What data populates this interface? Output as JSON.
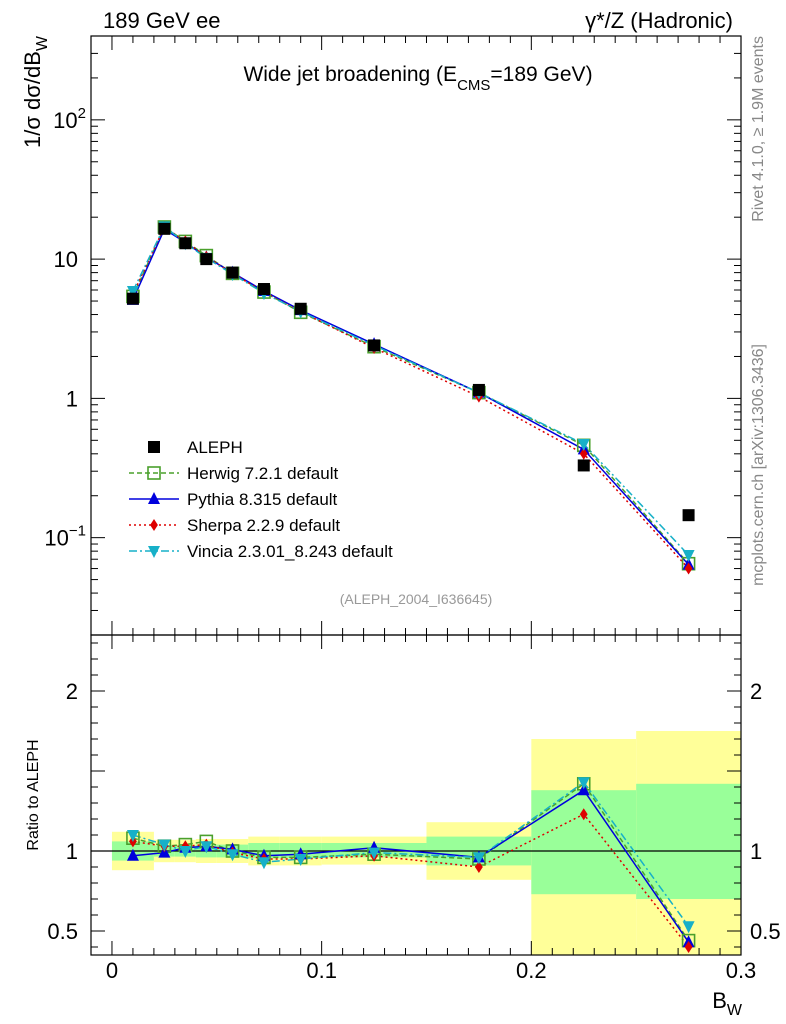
{
  "header": {
    "left": "189 GeV ee",
    "right": "γ*/Z (Hadronic)"
  },
  "side_labels": {
    "rivet": "Rivet 4.1.0, ≥ 1.9M events",
    "mcplots": "mcplots.cern.ch [arXiv:1306.3436]"
  },
  "chart_data": [
    {
      "type": "line",
      "panel": "main",
      "title": "Wide jet broadening (E_CMS=189 GeV)",
      "title_parts": {
        "pre": "Wide jet broadening (E",
        "sub": "CMS",
        "post": "=189 GeV)"
      },
      "ylabel": "1/σ dσ/dB_W",
      "ylabel_parts": {
        "pre": "1/σ  dσ/dB",
        "sub": "W"
      },
      "yscale": "log",
      "ylim": [
        0.02,
        400
      ],
      "xlim": [
        -0.01,
        0.3
      ],
      "yticks": [
        {
          "value": 0.1,
          "label": "10",
          "sup": "−1"
        },
        {
          "value": 1,
          "label": "1",
          "sup": ""
        },
        {
          "value": 10,
          "label": "10",
          "sup": ""
        },
        {
          "value": 100,
          "label": "10",
          "sup": "2"
        }
      ],
      "watermark": "(ALEPH_2004_I636645)",
      "legend_position": "lower-left",
      "data": {
        "name": "ALEPH",
        "x": [
          0.01,
          0.025,
          0.035,
          0.045,
          0.0575,
          0.0725,
          0.09,
          0.125,
          0.175,
          0.225,
          0.275
        ],
        "y": [
          5.2,
          16.5,
          13.0,
          10.0,
          8.0,
          6.1,
          4.4,
          2.4,
          1.15,
          0.33,
          0.145
        ]
      },
      "series": [
        {
          "name": "Herwig 7.2.1 default",
          "color": "#4aa02c",
          "dash": "5,3",
          "marker": "open-square",
          "x": [
            0.01,
            0.025,
            0.035,
            0.045,
            0.0575,
            0.0725,
            0.09,
            0.125,
            0.175,
            0.225,
            0.275
          ],
          "y": [
            5.4,
            17.0,
            13.4,
            10.6,
            7.9,
            5.8,
            4.15,
            2.35,
            1.1,
            0.46,
            0.065
          ]
        },
        {
          "name": "Pythia 8.315 default",
          "color": "#0000dd",
          "dash": "",
          "marker": "triangle-up",
          "x": [
            0.01,
            0.025,
            0.035,
            0.045,
            0.0575,
            0.0725,
            0.09,
            0.125,
            0.175,
            0.225,
            0.275
          ],
          "y": [
            5.1,
            16.4,
            13.2,
            10.3,
            8.0,
            5.9,
            4.3,
            2.45,
            1.1,
            0.43,
            0.064
          ]
        },
        {
          "name": "Sherpa 2.2.9 default",
          "color": "#dd0000",
          "dash": "2,3",
          "marker": "diamond",
          "x": [
            0.01,
            0.025,
            0.035,
            0.045,
            0.0575,
            0.0725,
            0.09,
            0.125,
            0.175,
            0.225,
            0.275
          ],
          "y": [
            5.6,
            17.0,
            13.4,
            10.4,
            7.9,
            5.8,
            4.2,
            2.3,
            1.03,
            0.4,
            0.06
          ]
        },
        {
          "name": "Vincia 2.3.01_8.243 default",
          "color": "#17b0c8",
          "dash": "8,3,2,3",
          "marker": "triangle-down",
          "x": [
            0.01,
            0.025,
            0.035,
            0.045,
            0.0575,
            0.0725,
            0.09,
            0.125,
            0.175,
            0.225,
            0.275
          ],
          "y": [
            5.9,
            17.2,
            13.0,
            10.2,
            7.8,
            5.7,
            4.2,
            2.4,
            1.1,
            0.47,
            0.075
          ]
        }
      ]
    },
    {
      "type": "line",
      "panel": "ratio",
      "ylabel": "Ratio to ALEPH",
      "xlabel": "B_W",
      "xlabel_parts": {
        "pre": "B",
        "sub": "W"
      },
      "ylim": [
        0.35,
        2.35
      ],
      "xlim": [
        -0.01,
        0.3
      ],
      "xticks": [
        0,
        0.1,
        0.2,
        0.3
      ],
      "xtick_labels": [
        "0",
        "0.1",
        "0.2",
        "0.3"
      ],
      "yticks": [
        0.5,
        1,
        2
      ],
      "ytick_labels": [
        "0.5",
        "1",
        "2"
      ],
      "bands": [
        {
          "x0": 0.0,
          "x1": 0.02,
          "inner": [
            0.94,
            1.06
          ],
          "outer": [
            0.88,
            1.12
          ]
        },
        {
          "x0": 0.02,
          "x1": 0.03,
          "inner": [
            0.965,
            1.035
          ],
          "outer": [
            0.93,
            1.07
          ]
        },
        {
          "x0": 0.03,
          "x1": 0.04,
          "inner": [
            0.965,
            1.035
          ],
          "outer": [
            0.93,
            1.07
          ]
        },
        {
          "x0": 0.04,
          "x1": 0.05,
          "inner": [
            0.96,
            1.04
          ],
          "outer": [
            0.925,
            1.075
          ]
        },
        {
          "x0": 0.05,
          "x1": 0.065,
          "inner": [
            0.96,
            1.04
          ],
          "outer": [
            0.925,
            1.075
          ]
        },
        {
          "x0": 0.065,
          "x1": 0.08,
          "inner": [
            0.955,
            1.05
          ],
          "outer": [
            0.91,
            1.09
          ]
        },
        {
          "x0": 0.08,
          "x1": 0.1,
          "inner": [
            0.955,
            1.05
          ],
          "outer": [
            0.91,
            1.09
          ]
        },
        {
          "x0": 0.1,
          "x1": 0.15,
          "inner": [
            0.96,
            1.05
          ],
          "outer": [
            0.915,
            1.09
          ]
        },
        {
          "x0": 0.15,
          "x1": 0.2,
          "inner": [
            0.91,
            1.09
          ],
          "outer": [
            0.82,
            1.18
          ]
        },
        {
          "x0": 0.2,
          "x1": 0.25,
          "inner": [
            0.73,
            1.38
          ],
          "outer": [
            0.35,
            1.7
          ]
        },
        {
          "x0": 0.25,
          "x1": 0.3,
          "inner": [
            0.7,
            1.42
          ],
          "outer": [
            0.35,
            1.75
          ]
        }
      ],
      "series": [
        {
          "name": "Herwig 7.2.1 default",
          "y": [
            1.08,
            1.03,
            1.04,
            1.06,
            1.0,
            0.96,
            0.96,
            0.98,
            0.95,
            1.42,
            0.44
          ]
        },
        {
          "name": "Pythia 8.315 default",
          "y": [
            0.97,
            0.99,
            1.02,
            1.03,
            1.01,
            0.97,
            0.98,
            1.02,
            0.96,
            1.38,
            0.43
          ]
        },
        {
          "name": "Sherpa 2.2.9 default",
          "y": [
            1.06,
            1.03,
            1.03,
            1.04,
            0.99,
            0.95,
            0.95,
            0.97,
            0.9,
            1.23,
            0.4
          ]
        },
        {
          "name": "Vincia 2.3.01_8.243 default",
          "y": [
            1.1,
            1.04,
            1.0,
            1.03,
            0.98,
            0.93,
            0.95,
            0.99,
            0.96,
            1.43,
            0.53
          ]
        }
      ]
    }
  ]
}
